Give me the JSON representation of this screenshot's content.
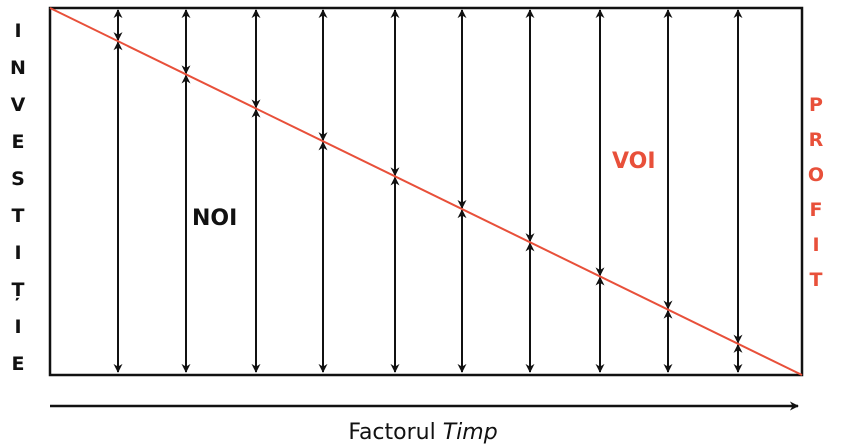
{
  "left_label": "INVESTIȚIE",
  "right_label": "PROFIT",
  "noi_label": "NOI",
  "voi_label": "VOI",
  "x_axis_label": {
    "text": "Factorul",
    "italic": "Timp"
  }
}
